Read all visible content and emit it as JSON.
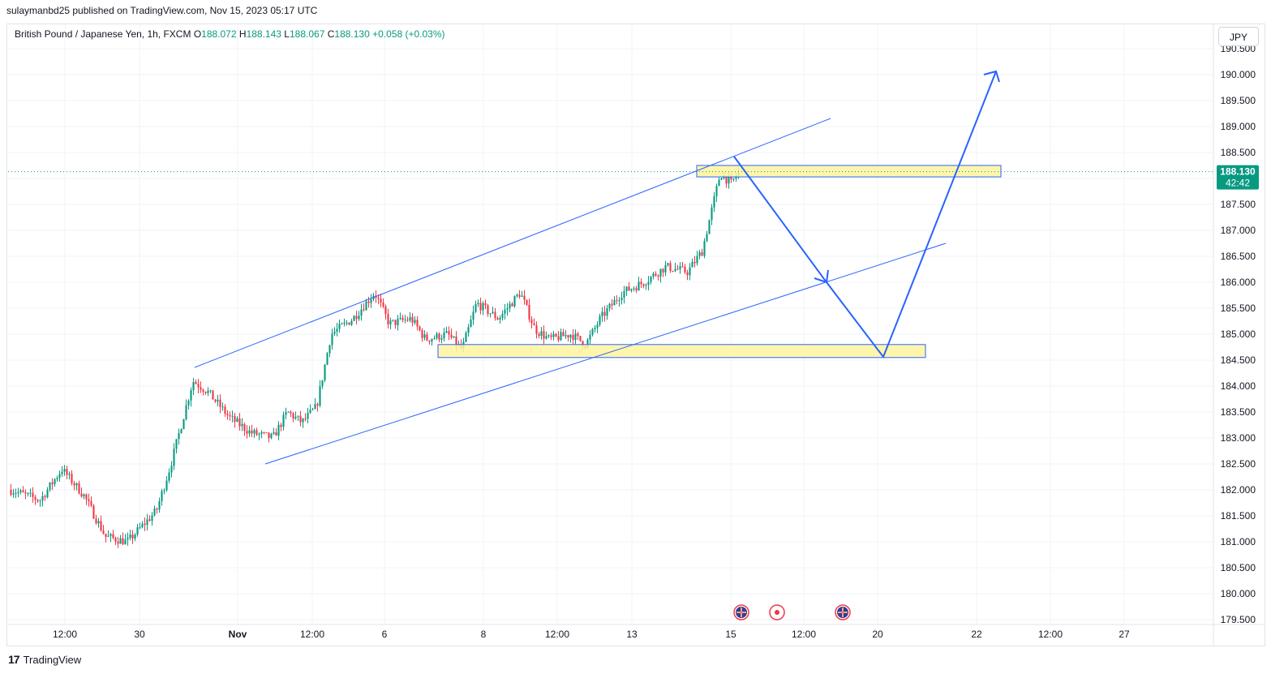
{
  "header": {
    "publisher_line": "sulaymanbd25 published on TradingView.com, Nov 15, 2023 05:17 UTC"
  },
  "legend": {
    "symbol": "British Pound / Japanese Yen, 1h, FXCM",
    "open_label": "O",
    "open": "188.072",
    "high_label": "H",
    "high": "188.143",
    "low_label": "L",
    "low": "188.067",
    "close_label": "C",
    "close": "188.130",
    "change": "+0.058 (+0.03%)"
  },
  "currency_button": "JPY",
  "price_badge": {
    "price": "188.130",
    "countdown": "42:42"
  },
  "branding": {
    "logo": "17",
    "name": "TradingView"
  },
  "colors": {
    "up": "#089981",
    "down": "#f23645",
    "drawing": "#2962ff",
    "zone_fill": "#fff59d",
    "zone_border": "#2962ff",
    "grid": "#f0f3fa"
  },
  "chart_data": {
    "type": "candlestick",
    "symbol": "GBPJPY",
    "interval": "1h",
    "ylim": [
      179.5,
      190.5
    ],
    "y_ticks": [
      "190.500",
      "190.000",
      "189.500",
      "189.000",
      "188.500",
      "188.000",
      "187.500",
      "187.000",
      "186.500",
      "186.000",
      "185.500",
      "185.000",
      "184.500",
      "184.000",
      "183.500",
      "183.000",
      "182.500",
      "182.000",
      "181.500",
      "181.000",
      "180.500",
      "180.000",
      "179.500"
    ],
    "x_ticks": [
      "12:00",
      "30",
      "Nov",
      "12:00",
      "6",
      "8",
      "12:00",
      "13",
      "15",
      "12:00",
      "20",
      "22",
      "12:00",
      "27"
    ],
    "price_path": [
      {
        "t": 0,
        "p": 182.0
      },
      {
        "t": 0.04,
        "p": 181.8
      },
      {
        "t": 0.07,
        "p": 182.4
      },
      {
        "t": 0.1,
        "p": 181.9
      },
      {
        "t": 0.13,
        "p": 181.1
      },
      {
        "t": 0.16,
        "p": 181.0
      },
      {
        "t": 0.18,
        "p": 181.3
      },
      {
        "t": 0.2,
        "p": 181.6
      },
      {
        "t": 0.22,
        "p": 182.5
      },
      {
        "t": 0.25,
        "p": 184.1
      },
      {
        "t": 0.27,
        "p": 183.9
      },
      {
        "t": 0.3,
        "p": 183.4
      },
      {
        "t": 0.33,
        "p": 183.1
      },
      {
        "t": 0.36,
        "p": 183.0
      },
      {
        "t": 0.38,
        "p": 183.5
      },
      {
        "t": 0.4,
        "p": 183.3
      },
      {
        "t": 0.42,
        "p": 183.6
      },
      {
        "t": 0.44,
        "p": 185.0
      },
      {
        "t": 0.47,
        "p": 185.3
      },
      {
        "t": 0.5,
        "p": 185.8
      },
      {
        "t": 0.52,
        "p": 185.2
      },
      {
        "t": 0.55,
        "p": 185.3
      },
      {
        "t": 0.57,
        "p": 184.9
      },
      {
        "t": 0.6,
        "p": 185.0
      },
      {
        "t": 0.62,
        "p": 184.7
      },
      {
        "t": 0.64,
        "p": 185.6
      },
      {
        "t": 0.67,
        "p": 185.3
      },
      {
        "t": 0.7,
        "p": 185.8
      },
      {
        "t": 0.72,
        "p": 185.1
      },
      {
        "t": 0.74,
        "p": 184.9
      },
      {
        "t": 0.77,
        "p": 185.0
      },
      {
        "t": 0.79,
        "p": 184.8
      },
      {
        "t": 0.81,
        "p": 185.3
      },
      {
        "t": 0.84,
        "p": 185.8
      },
      {
        "t": 0.87,
        "p": 186.0
      },
      {
        "t": 0.9,
        "p": 186.3
      },
      {
        "t": 0.93,
        "p": 186.2
      },
      {
        "t": 0.95,
        "p": 186.6
      },
      {
        "t": 0.965,
        "p": 187.5
      },
      {
        "t": 0.975,
        "p": 188.1
      },
      {
        "t": 0.99,
        "p": 187.9
      },
      {
        "t": 1.0,
        "p": 188.13
      }
    ],
    "last_price": 188.13,
    "zones": [
      {
        "name": "resistance-zone",
        "low": 188.03,
        "high": 188.25
      },
      {
        "name": "support-zone",
        "low": 184.55,
        "high": 184.8
      }
    ],
    "grid": true,
    "legend_position": "top-left"
  }
}
